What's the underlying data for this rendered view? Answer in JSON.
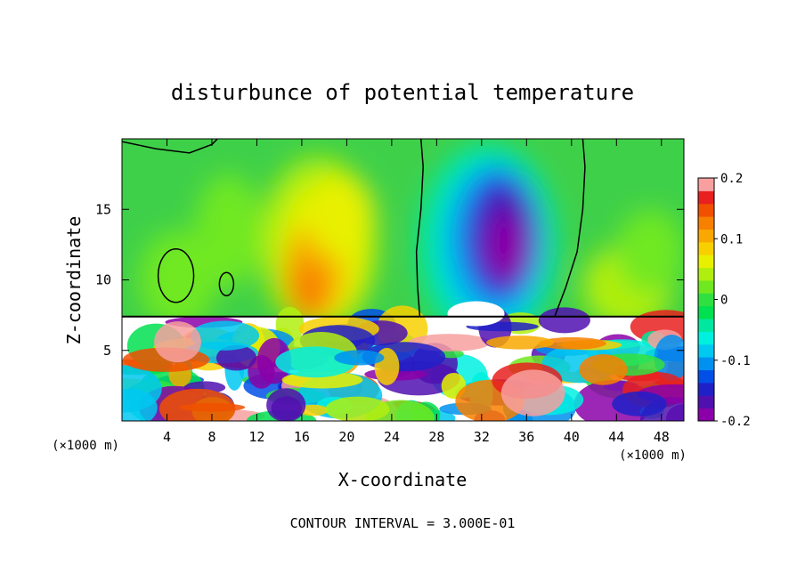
{
  "chart_data": {
    "type": "heatmap",
    "title": "disturbunce of potential temperature",
    "xlabel": "X-coordinate",
    "ylabel": "Z-coordinate",
    "x_unit_label": "(×1000 m)",
    "x_unit_label_right": "(×1000 m)",
    "footer": "CONTOUR INTERVAL = 3.000E-01",
    "xlim": [
      0,
      50
    ],
    "ylim": [
      0,
      20
    ],
    "x_ticks": [
      4,
      8,
      12,
      16,
      20,
      24,
      28,
      32,
      36,
      40,
      44,
      48
    ],
    "y_ticks": [
      5,
      10,
      15
    ],
    "colorbar": {
      "min": -0.2,
      "max": 0.2,
      "tick_labels": [
        "0.2",
        "0.1",
        "0",
        "-0.1",
        "-0.2"
      ],
      "tick_values": [
        0.2,
        0.1,
        0,
        -0.1,
        -0.2
      ],
      "colors": [
        "#8b00a8",
        "#5010b0",
        "#2020c8",
        "#0050e8",
        "#0090f0",
        "#00c8f0",
        "#00f0e0",
        "#00e8a0",
        "#00e050",
        "#30e040",
        "#70e820",
        "#b0ee10",
        "#e8f000",
        "#f8d000",
        "#f8a800",
        "#f88000",
        "#f05000",
        "#e82020",
        "#f8a0a0"
      ]
    },
    "features": [
      {
        "cx": 34,
        "cz": 13,
        "value": -0.2
      },
      {
        "cx": 29,
        "cz": 14,
        "value": -0.1
      },
      {
        "cx": 16.5,
        "cz": 11,
        "value": 0.12
      },
      {
        "cx": 19,
        "cz": 14,
        "value": 0.06
      },
      {
        "cx": 5,
        "cz": 10,
        "value": 0.04
      },
      {
        "cx": 45,
        "cz": 10,
        "value": 0.04
      }
    ]
  }
}
